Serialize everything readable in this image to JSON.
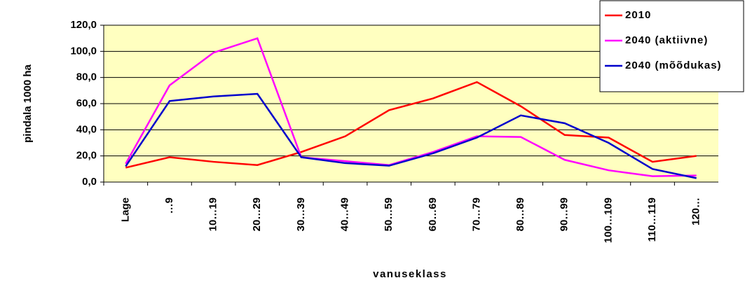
{
  "chart_data": {
    "type": "line",
    "categories": [
      "Lage",
      "…9",
      "10…19",
      "20…29",
      "30…39",
      "40…49",
      "50…59",
      "60…69",
      "70…79",
      "80…89",
      "90…99",
      "100…109",
      "110…119",
      "120…"
    ],
    "series": [
      {
        "name": "2010",
        "color": "#ff0000",
        "values": [
          11,
          19,
          15.5,
          13,
          23,
          35,
          55,
          64,
          76.5,
          58,
          36,
          34,
          15.5,
          20
        ]
      },
      {
        "name": "2040 (aktiivne)",
        "color": "#ff00ff",
        "values": [
          14,
          74,
          99,
          110,
          19,
          16,
          13,
          23,
          35,
          34.5,
          17,
          9,
          4.5,
          5
        ]
      },
      {
        "name": "2040 (mõõdukas)",
        "color": "#0000cc",
        "values": [
          12,
          62,
          65.5,
          67.5,
          19,
          14.5,
          12.5,
          22,
          34,
          51,
          45,
          30,
          10,
          3
        ]
      }
    ],
    "ylim": [
      0,
      120
    ],
    "yticks": [
      {
        "value": 0,
        "label": "0,0"
      },
      {
        "value": 20,
        "label": "20,0"
      },
      {
        "value": 40,
        "label": "40,0"
      },
      {
        "value": 60,
        "label": "60,0"
      },
      {
        "value": 80,
        "label": "80,0"
      },
      {
        "value": 100,
        "label": "100,0"
      },
      {
        "value": 120,
        "label": "120,0"
      }
    ],
    "ylabel": "pindala 1000 ha",
    "xlabel": "vanuseklass",
    "grid": true,
    "legend": "top-right"
  }
}
